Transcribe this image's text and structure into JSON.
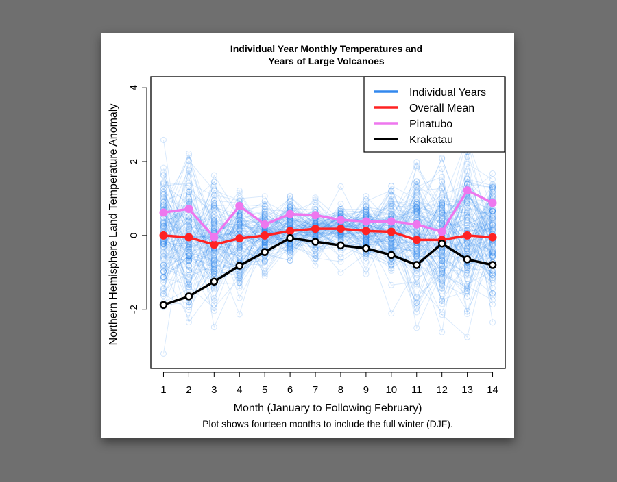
{
  "chart_data": {
    "type": "line",
    "title_line1": "Individual Year Monthly Temperatures and",
    "title_line2": "Years of Large Volcanoes",
    "xlabel": "Month (January to Following February)",
    "ylabel": "Northern Hemisphere Land Temperature Anomaly",
    "note": "Plot shows fourteen months to include the full winter (DJF).",
    "x": [
      1,
      2,
      3,
      4,
      5,
      6,
      7,
      8,
      9,
      10,
      11,
      12,
      13,
      14
    ],
    "x_ticks": [
      "1",
      "2",
      "3",
      "4",
      "5",
      "6",
      "7",
      "8",
      "9",
      "10",
      "11",
      "12",
      "13",
      "14"
    ],
    "y_ticks": [
      "-2",
      "0",
      "2",
      "4"
    ],
    "y_tick_values": [
      -2,
      0,
      2,
      4
    ],
    "xlim": [
      0.5,
      14.5
    ],
    "ylim": [
      -3.6,
      4.3
    ],
    "legend_position": "top-right",
    "series": [
      {
        "name": "Overall Mean",
        "color": "#ff2222",
        "values": [
          0.0,
          -0.05,
          -0.25,
          -0.08,
          0.0,
          0.12,
          0.18,
          0.18,
          0.12,
          0.1,
          -0.12,
          -0.12,
          0.0,
          -0.05
        ]
      },
      {
        "name": "Pinatubo",
        "color": "#ee77ee",
        "values": [
          0.62,
          0.72,
          -0.05,
          0.8,
          0.3,
          0.58,
          0.55,
          0.42,
          0.38,
          0.38,
          0.3,
          0.1,
          1.22,
          0.88
        ]
      },
      {
        "name": "Krakatau",
        "color": "#000000",
        "values": [
          -1.88,
          -1.65,
          -1.25,
          -0.82,
          -0.45,
          -0.07,
          -0.17,
          -0.27,
          -0.35,
          -0.53,
          -0.8,
          -0.22,
          -0.65,
          -0.8
        ]
      }
    ],
    "individual_years": {
      "name": "Individual Years",
      "color": "#3388ee",
      "spread_sd": [
        0.95,
        0.95,
        0.9,
        0.72,
        0.5,
        0.38,
        0.35,
        0.35,
        0.4,
        0.55,
        0.9,
        0.95,
        0.95,
        0.9
      ],
      "mean": [
        0.0,
        -0.05,
        -0.25,
        -0.08,
        0.0,
        0.12,
        0.18,
        0.18,
        0.12,
        0.1,
        -0.12,
        -0.12,
        0.0,
        -0.05
      ],
      "count": 120
    }
  }
}
